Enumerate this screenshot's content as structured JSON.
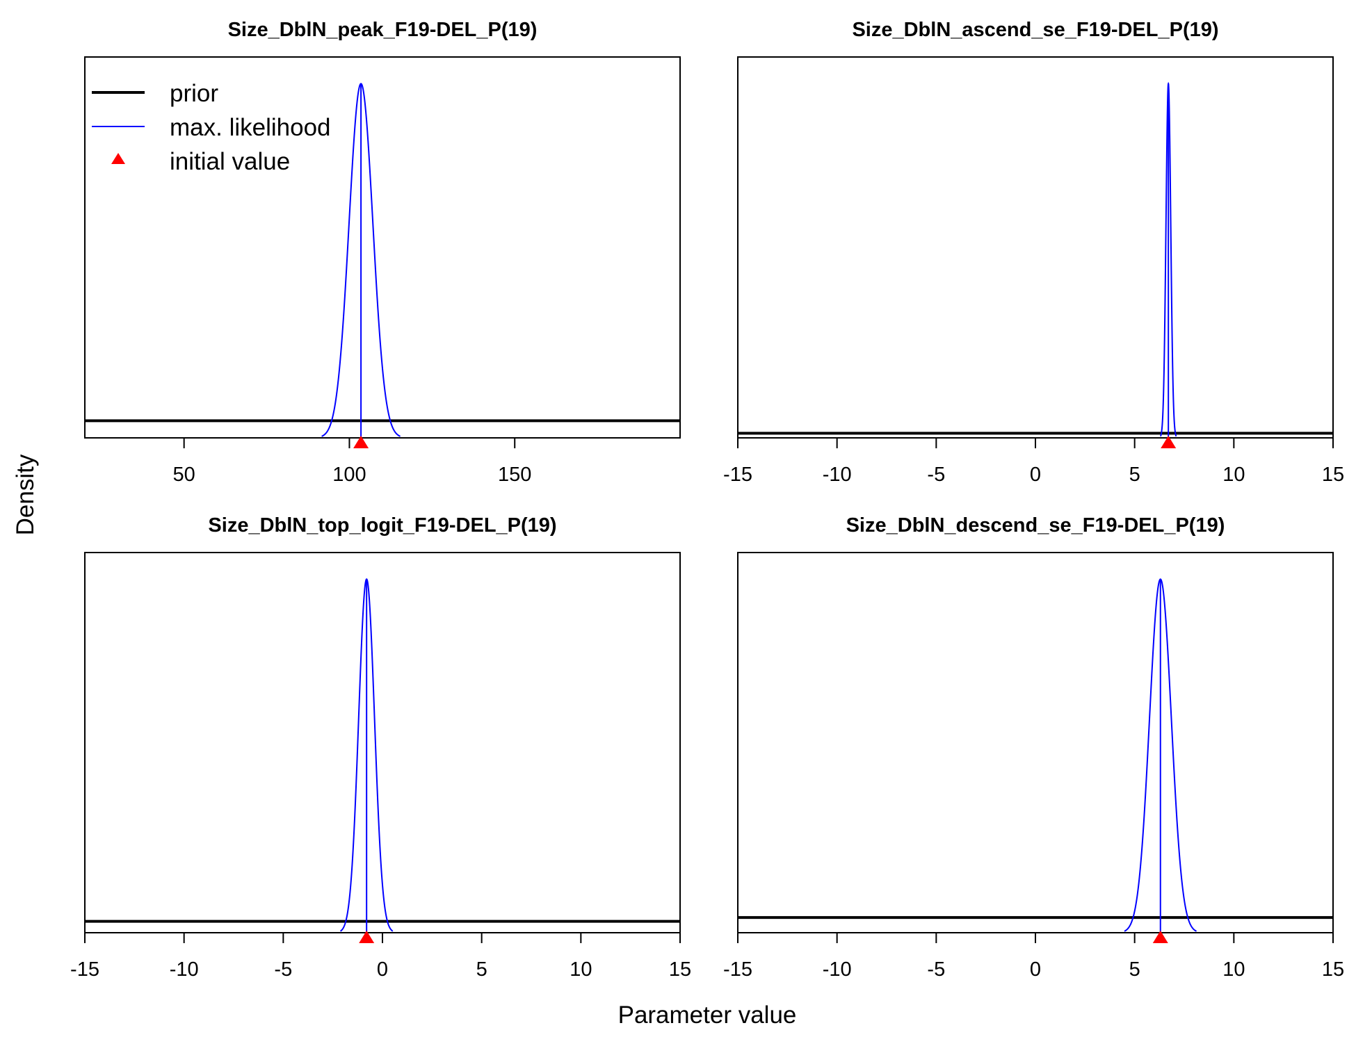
{
  "figure": {
    "ylabel": "Density",
    "xlabel": "Parameter value"
  },
  "legend": {
    "placement": "top-left of first panel",
    "items": [
      {
        "label": "prior",
        "kind": "line",
        "color": "#000000"
      },
      {
        "label": "max. likelihood",
        "kind": "line",
        "color": "#0000ff"
      },
      {
        "label": "initial value",
        "kind": "triangle",
        "color": "#ff0000"
      }
    ]
  },
  "chart_data": [
    {
      "type": "line",
      "title": "Size_DblN_peak_F19-DEL_P(19)",
      "xlim": [
        20,
        200
      ],
      "xticks": [
        50,
        100,
        150
      ],
      "tick_labels": [
        "50",
        "100",
        "150"
      ],
      "series": [
        {
          "name": "prior",
          "kind": "flat",
          "level": 0.045,
          "color": "#000000"
        },
        {
          "name": "max. likelihood",
          "kind": "normal",
          "mean": 103.5,
          "sd": 3.6,
          "color": "#0000ff"
        }
      ],
      "initial_value": 103.5,
      "mle": 103.5
    },
    {
      "type": "line",
      "title": "Size_DblN_ascend_se_F19-DEL_P(19)",
      "xlim": [
        -15,
        15
      ],
      "xticks": [
        -15,
        -10,
        -5,
        0,
        5,
        10,
        15
      ],
      "tick_labels": [
        "-15",
        "-10",
        "-5",
        "0",
        "5",
        "10",
        "15"
      ],
      "series": [
        {
          "name": "prior",
          "kind": "flat",
          "level": 0.012,
          "color": "#000000"
        },
        {
          "name": "max. likelihood",
          "kind": "normal",
          "mean": 6.7,
          "sd": 0.12,
          "color": "#0000ff"
        }
      ],
      "initial_value": 6.7,
      "mle": 6.7
    },
    {
      "type": "line",
      "title": "Size_DblN_top_logit_F19-DEL_P(19)",
      "xlim": [
        -15,
        15
      ],
      "xticks": [
        -15,
        -10,
        -5,
        0,
        5,
        10,
        15
      ],
      "tick_labels": [
        "-15",
        "-10",
        "-5",
        "0",
        "5",
        "10",
        "15"
      ],
      "series": [
        {
          "name": "prior",
          "kind": "flat",
          "level": 0.03,
          "color": "#000000"
        },
        {
          "name": "max. likelihood",
          "kind": "normal",
          "mean": -0.8,
          "sd": 0.4,
          "color": "#0000ff"
        }
      ],
      "initial_value": -0.8,
      "mle": -0.8
    },
    {
      "type": "line",
      "title": "Size_DblN_descend_se_F19-DEL_P(19)",
      "xlim": [
        -15,
        15
      ],
      "xticks": [
        -15,
        -10,
        -5,
        0,
        5,
        10,
        15
      ],
      "tick_labels": [
        "-15",
        "-10",
        "-5",
        "0",
        "5",
        "10",
        "15"
      ],
      "series": [
        {
          "name": "prior",
          "kind": "flat",
          "level": 0.04,
          "color": "#000000"
        },
        {
          "name": "max. likelihood",
          "kind": "normal",
          "mean": 6.3,
          "sd": 0.55,
          "color": "#0000ff"
        }
      ],
      "initial_value": 6.3,
      "mle": 6.3
    }
  ]
}
